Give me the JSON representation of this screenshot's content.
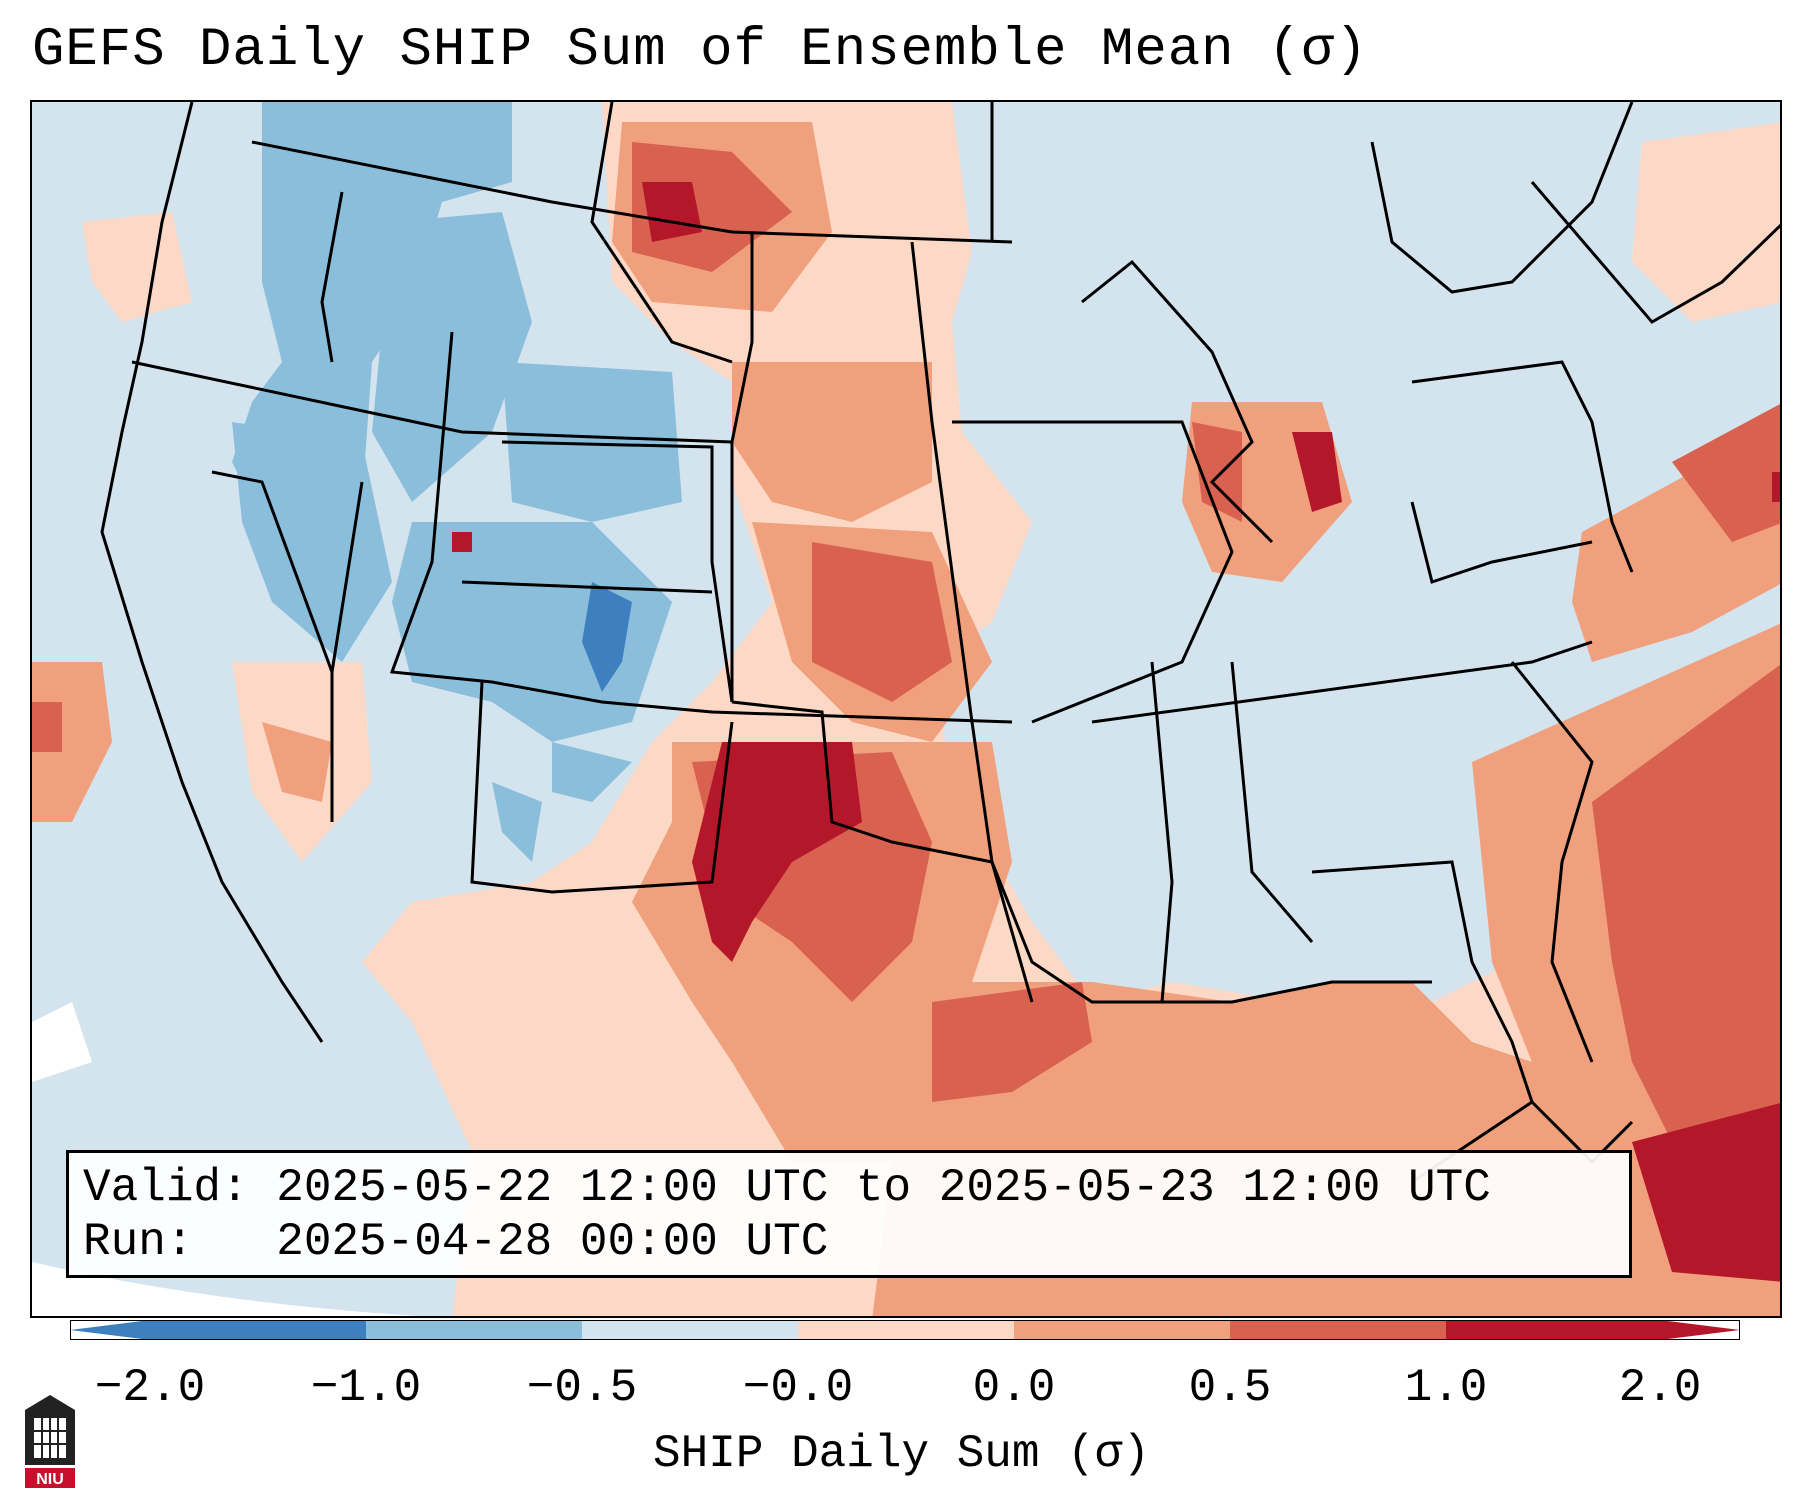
{
  "title": "GEFS Daily SHIP Sum of Ensemble Mean (σ)",
  "info": {
    "valid_line": "Valid: 2025-05-22 12:00 UTC to 2025-05-23 12:00 UTC",
    "run_line": "Run:   2025-04-28 00:00 UTC"
  },
  "colorbar": {
    "label": "SHIP Daily Sum (σ)",
    "ticks": [
      "−2.0",
      "−1.0",
      "−0.5",
      "−0.0",
      "0.0",
      "0.5",
      "1.0",
      "2.0"
    ],
    "colors": [
      "#3d7fbf",
      "#8bbedb",
      "#d3e4ef",
      "#ffffff",
      "#fcd9c6",
      "#f0a07c",
      "#d9614f",
      "#b5172a"
    ],
    "extend_low_color": "#3d7fbf",
    "extend_high_color": "#b5172a"
  },
  "logo": {
    "text": "NIU",
    "icon": "niu-logo-icon",
    "color": "#c8102e"
  },
  "map": {
    "background_color": "#d3e4ef",
    "regions_depicted": [
      "western US negative anomalies",
      "southern plains positive anomalies",
      "Texas panhandle strong positive",
      "Gulf of Mexico positive",
      "western Atlantic positive",
      "northern plains positive",
      "Michigan positive"
    ]
  }
}
